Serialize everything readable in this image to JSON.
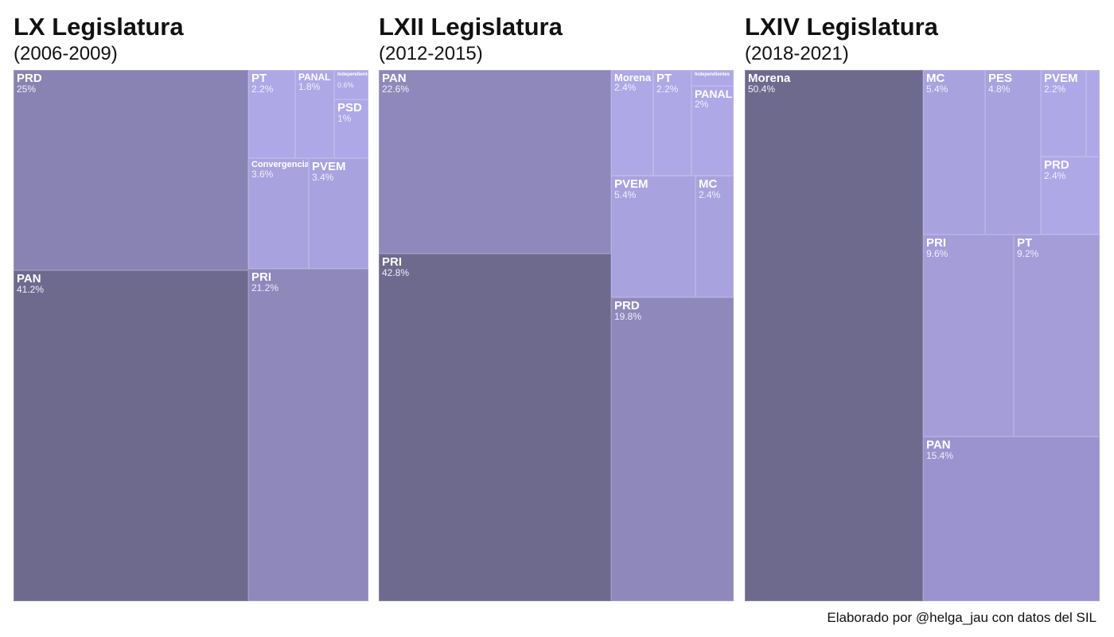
{
  "credit": "Elaborado por @helga_jau con datos del SIL",
  "colors": {
    "darkest": "#6e6a8e",
    "dark": "#8883b3",
    "medium": "#8f88bb",
    "light": "#a8a2de",
    "lighter": "#aea8e6",
    "pan_lxiv": "#9a93cf",
    "pri_pt_lxiv": "#a49dd8"
  },
  "chart_data": [
    {
      "type": "treemap",
      "title": "LX Legislatura",
      "subtitle": "(2006-2009)",
      "unit": "%",
      "items": [
        {
          "name": "PAN",
          "value": 41.2,
          "label": "41.2%"
        },
        {
          "name": "PRD",
          "value": 25,
          "label": "25%"
        },
        {
          "name": "PRI",
          "value": 21.2,
          "label": "21.2%"
        },
        {
          "name": "Convergencia",
          "value": 3.6,
          "label": "3.6%"
        },
        {
          "name": "PVEM",
          "value": 3.4,
          "label": "3.4%"
        },
        {
          "name": "PT",
          "value": 2.2,
          "label": "2.2%"
        },
        {
          "name": "PANAL",
          "value": 1.8,
          "label": "1.8%"
        },
        {
          "name": "PSD",
          "value": 1,
          "label": "1%"
        },
        {
          "name": "Independientes",
          "value": 0.6,
          "label": "0.6%"
        }
      ]
    },
    {
      "type": "treemap",
      "title": "LXII Legislatura",
      "subtitle": "(2012-2015)",
      "unit": "%",
      "items": [
        {
          "name": "PRI",
          "value": 42.8,
          "label": "42.8%"
        },
        {
          "name": "PAN",
          "value": 22.6,
          "label": "22.6%"
        },
        {
          "name": "PRD",
          "value": 19.8,
          "label": "19.8%"
        },
        {
          "name": "PVEM",
          "value": 5.4,
          "label": "5.4%"
        },
        {
          "name": "Morena",
          "value": 2.4,
          "label": "2.4%"
        },
        {
          "name": "MC",
          "value": 2.4,
          "label": "2.4%"
        },
        {
          "name": "PT",
          "value": 2.2,
          "label": "2.2%"
        },
        {
          "name": "PANAL",
          "value": 2,
          "label": "2%"
        },
        {
          "name": "Independientes",
          "value": 0.2,
          "label": ""
        }
      ]
    },
    {
      "type": "treemap",
      "title": "LXIV Legislatura",
      "subtitle": "(2018-2021)",
      "unit": "%",
      "items": [
        {
          "name": "Morena",
          "value": 50.4,
          "label": "50.4%"
        },
        {
          "name": "PAN",
          "value": 15.4,
          "label": "15.4%"
        },
        {
          "name": "PRI",
          "value": 9.6,
          "label": "9.6%"
        },
        {
          "name": "PT",
          "value": 9.2,
          "label": "9.2%"
        },
        {
          "name": "MC",
          "value": 5.4,
          "label": "5.4%"
        },
        {
          "name": "PES",
          "value": 4.8,
          "label": "4.8%"
        },
        {
          "name": "PVEM",
          "value": 2.2,
          "label": "2.2%"
        },
        {
          "name": "PRD",
          "value": 2.4,
          "label": "2.4%"
        },
        {
          "name": "",
          "value": 0.6,
          "label": ""
        }
      ]
    }
  ]
}
